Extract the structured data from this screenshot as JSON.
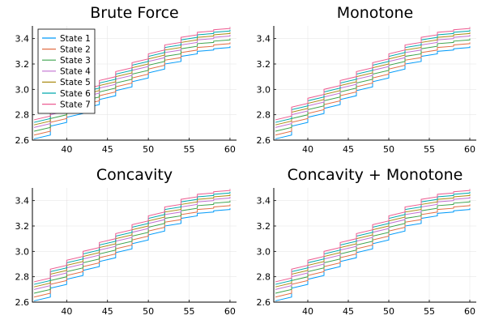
{
  "chart_data": [
    {
      "type": "line",
      "title": "Brute Force",
      "xlim": [
        35.8,
        60.8
      ],
      "ylim": [
        2.6,
        3.5
      ],
      "x_ticks": [
        40,
        45,
        50,
        55,
        60
      ],
      "y_ticks": [
        2.6,
        2.8,
        3.0,
        3.2,
        3.4
      ],
      "grid": true,
      "legend": "top-left",
      "series_ref": "shared"
    },
    {
      "type": "line",
      "title": "Monotone",
      "xlim": [
        35.8,
        60.8
      ],
      "ylim": [
        2.6,
        3.5
      ],
      "x_ticks": [
        40,
        45,
        50,
        55,
        60
      ],
      "y_ticks": [
        2.6,
        2.8,
        3.0,
        3.2,
        3.4
      ],
      "grid": true,
      "legend": "none",
      "series_ref": "shared"
    },
    {
      "type": "line",
      "title": "Concavity",
      "xlim": [
        35.8,
        60.8
      ],
      "ylim": [
        2.6,
        3.5
      ],
      "x_ticks": [
        40,
        45,
        50,
        55,
        60
      ],
      "y_ticks": [
        2.6,
        2.8,
        3.0,
        3.2,
        3.4
      ],
      "grid": true,
      "legend": "none",
      "series_ref": "shared"
    },
    {
      "type": "line",
      "title": "Concavity + Monotone",
      "xlim": [
        35.8,
        60.8
      ],
      "ylim": [
        2.6,
        3.5
      ],
      "x_ticks": [
        40,
        45,
        50,
        55,
        60
      ],
      "y_ticks": [
        2.6,
        2.8,
        3.0,
        3.2,
        3.4
      ],
      "grid": true,
      "legend": "none",
      "series_ref": "shared"
    }
  ],
  "series": [
    {
      "name": "State 1",
      "color": "#009af9",
      "x": [
        36,
        38,
        38,
        40,
        40,
        42,
        42,
        44,
        44,
        46,
        46,
        48,
        48,
        50,
        50,
        52,
        52,
        54,
        54,
        56,
        56,
        58,
        58,
        60,
        60
      ],
      "y": [
        2.61,
        2.64,
        2.71,
        2.74,
        2.78,
        2.81,
        2.85,
        2.88,
        2.92,
        2.95,
        2.99,
        3.02,
        3.06,
        3.09,
        3.13,
        3.16,
        3.2,
        3.22,
        3.26,
        3.28,
        3.3,
        3.31,
        3.32,
        3.33,
        3.34
      ]
    },
    {
      "name": "State 2",
      "color": "#e26f46",
      "x": [
        36,
        38,
        38,
        40,
        40,
        42,
        42,
        44,
        44,
        46,
        46,
        48,
        48,
        50,
        50,
        52,
        52,
        54,
        54,
        56,
        56,
        58,
        58,
        60,
        60
      ],
      "y": [
        2.64,
        2.67,
        2.74,
        2.77,
        2.81,
        2.84,
        2.88,
        2.91,
        2.95,
        2.98,
        3.02,
        3.05,
        3.09,
        3.12,
        3.16,
        3.19,
        3.23,
        3.25,
        3.29,
        3.31,
        3.33,
        3.34,
        3.35,
        3.36,
        3.37
      ]
    },
    {
      "name": "State 3",
      "color": "#3da44d",
      "x": [
        36,
        38,
        38,
        40,
        40,
        42,
        42,
        44,
        44,
        46,
        46,
        48,
        48,
        50,
        50,
        52,
        52,
        54,
        54,
        56,
        56,
        58,
        58,
        60,
        60
      ],
      "y": [
        2.67,
        2.7,
        2.77,
        2.8,
        2.84,
        2.87,
        2.91,
        2.94,
        2.98,
        3.01,
        3.05,
        3.08,
        3.12,
        3.15,
        3.19,
        3.22,
        3.26,
        3.28,
        3.32,
        3.34,
        3.36,
        3.37,
        3.38,
        3.39,
        3.4
      ]
    },
    {
      "name": "State 4",
      "color": "#c271d2",
      "x": [
        36,
        38,
        38,
        40,
        40,
        42,
        42,
        44,
        44,
        46,
        46,
        48,
        48,
        50,
        50,
        52,
        52,
        54,
        54,
        56,
        56,
        58,
        58,
        60,
        60
      ],
      "y": [
        2.7,
        2.73,
        2.8,
        2.83,
        2.87,
        2.9,
        2.94,
        2.97,
        3.01,
        3.04,
        3.08,
        3.11,
        3.15,
        3.18,
        3.22,
        3.25,
        3.29,
        3.31,
        3.35,
        3.37,
        3.39,
        3.4,
        3.41,
        3.42,
        3.43
      ]
    },
    {
      "name": "State 5",
      "color": "#ac8d18",
      "x": [
        36,
        38,
        38,
        40,
        40,
        42,
        42,
        44,
        44,
        46,
        46,
        48,
        48,
        50,
        50,
        52,
        52,
        54,
        54,
        56,
        56,
        58,
        58,
        60,
        60
      ],
      "y": [
        2.72,
        2.75,
        2.82,
        2.85,
        2.89,
        2.92,
        2.96,
        2.99,
        3.03,
        3.06,
        3.1,
        3.13,
        3.17,
        3.2,
        3.24,
        3.27,
        3.31,
        3.33,
        3.37,
        3.39,
        3.41,
        3.42,
        3.43,
        3.44,
        3.45
      ]
    },
    {
      "name": "State 6",
      "color": "#00a9ad",
      "x": [
        36,
        38,
        38,
        40,
        40,
        42,
        42,
        44,
        44,
        46,
        46,
        48,
        48,
        50,
        50,
        52,
        52,
        54,
        54,
        56,
        56,
        58,
        58,
        60,
        60
      ],
      "y": [
        2.74,
        2.77,
        2.84,
        2.87,
        2.91,
        2.94,
        2.98,
        3.01,
        3.05,
        3.08,
        3.12,
        3.15,
        3.19,
        3.22,
        3.26,
        3.29,
        3.33,
        3.35,
        3.39,
        3.41,
        3.43,
        3.44,
        3.45,
        3.46,
        3.47
      ]
    },
    {
      "name": "State 7",
      "color": "#ed5d92",
      "x": [
        36,
        38,
        38,
        40,
        40,
        42,
        42,
        44,
        44,
        46,
        46,
        48,
        48,
        50,
        50,
        52,
        52,
        54,
        54,
        56,
        56,
        58,
        58,
        60,
        60
      ],
      "y": [
        2.76,
        2.79,
        2.86,
        2.89,
        2.93,
        2.96,
        3.0,
        3.03,
        3.07,
        3.1,
        3.14,
        3.17,
        3.21,
        3.24,
        3.28,
        3.31,
        3.35,
        3.37,
        3.41,
        3.43,
        3.45,
        3.46,
        3.47,
        3.48,
        3.49
      ]
    }
  ]
}
